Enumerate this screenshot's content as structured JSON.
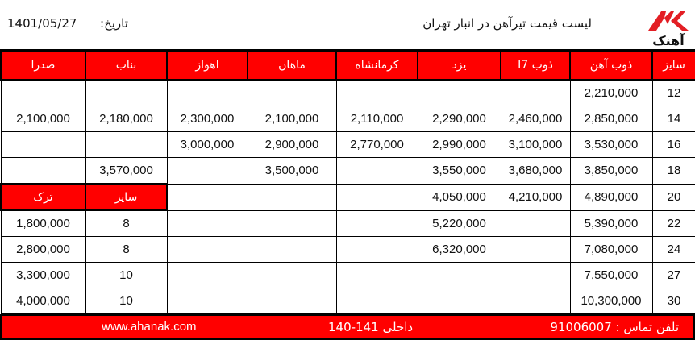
{
  "header": {
    "logo_text": "آهنک",
    "title": "لیست قیمت تیرآهن در انبار تهران",
    "date_label": "تاریخ:",
    "date_value": "1401/05/27"
  },
  "colors": {
    "accent": "#ff0000",
    "border": "#000000"
  },
  "table": {
    "columns": [
      "سایز",
      "ذوب آهن",
      "ذوب I7",
      "یزد",
      "کرمانشاه",
      "ماهان",
      "اهواز",
      "بناب",
      "صدرا"
    ],
    "sub_headers": {
      "size": "سایز",
      "turk": "ترک"
    },
    "rows": [
      [
        "12",
        "2,210,000",
        "",
        "",
        "",
        "",
        "",
        "",
        ""
      ],
      [
        "14",
        "2,850,000",
        "2,460,000",
        "2,290,000",
        "2,110,000",
        "2,100,000",
        "2,300,000",
        "2,180,000",
        "2,100,000"
      ],
      [
        "16",
        "3,530,000",
        "3,100,000",
        "2,990,000",
        "2,770,000",
        "2,900,000",
        "3,000,000",
        "",
        ""
      ],
      [
        "18",
        "3,850,000",
        "3,680,000",
        "3,550,000",
        "",
        "3,500,000",
        "",
        "3,570,000",
        ""
      ],
      [
        "20",
        "4,890,000",
        "4,210,000",
        "4,050,000",
        "",
        "",
        "",
        "سایز",
        "ترک"
      ],
      [
        "22",
        "5,390,000",
        "",
        "5,220,000",
        "",
        "",
        "",
        "8",
        "1,800,000"
      ],
      [
        "24",
        "7,080,000",
        "",
        "6,320,000",
        "",
        "",
        "",
        "8",
        "2,800,000"
      ],
      [
        "27",
        "7,550,000",
        "",
        "",
        "",
        "",
        "",
        "10",
        "3,300,000"
      ],
      [
        "30",
        "10,300,000",
        "",
        "",
        "",
        "",
        "",
        "10",
        "4,000,000"
      ]
    ]
  },
  "footer": {
    "phone": "تلفن تماس : 91006007",
    "extension": "داخلی 141-140",
    "website": "www.ahanak.com"
  }
}
